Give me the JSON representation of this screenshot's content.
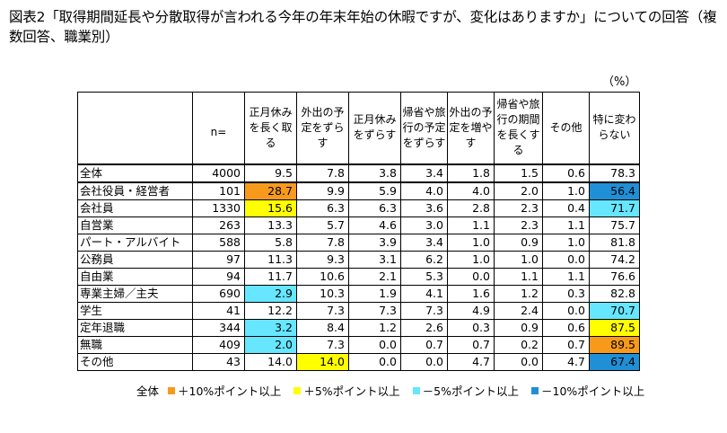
{
  "title": "図表2「取得期間延長や分散取得が言われる今年の年末年始の休暇ですが、変化はありますか」についての回答（複数回答、職業別）",
  "unit": "（%）",
  "columns": [
    "n=",
    "正月休みを長く取る",
    "外出の予定をずらす",
    "正月休みをずらす",
    "帰省や旅行の予定をずらす",
    "外出の予定を増やす",
    "帰省や旅行の期間を長くする",
    "その他",
    "特に変わらない"
  ],
  "rows": [
    {
      "label": "全体",
      "values": [
        "4000",
        "9.5",
        "7.8",
        "3.8",
        "3.4",
        "1.8",
        "1.5",
        "0.6",
        "78.3"
      ],
      "hl": [
        "",
        "",
        "",
        "",
        "",
        "",
        "",
        "",
        ""
      ]
    },
    {
      "label": "会社役員・経営者",
      "values": [
        "101",
        "28.7",
        "9.9",
        "5.9",
        "4.0",
        "4.0",
        "2.0",
        "1.0",
        "56.4"
      ],
      "hl": [
        "",
        "orange",
        "",
        "",
        "",
        "",
        "",
        "",
        "blue"
      ]
    },
    {
      "label": "会社員",
      "values": [
        "1330",
        "15.6",
        "6.3",
        "6.3",
        "3.6",
        "2.8",
        "2.3",
        "0.4",
        "71.7"
      ],
      "hl": [
        "",
        "yellow",
        "",
        "",
        "",
        "",
        "",
        "",
        "cyan"
      ]
    },
    {
      "label": "自営業",
      "values": [
        "263",
        "13.3",
        "5.7",
        "4.6",
        "3.0",
        "1.1",
        "2.3",
        "1.1",
        "75.7"
      ],
      "hl": [
        "",
        "",
        "",
        "",
        "",
        "",
        "",
        "",
        ""
      ]
    },
    {
      "label": "パート・アルバイト",
      "values": [
        "588",
        "5.8",
        "7.8",
        "3.9",
        "3.4",
        "1.0",
        "0.9",
        "1.0",
        "81.8"
      ],
      "hl": [
        "",
        "",
        "",
        "",
        "",
        "",
        "",
        "",
        ""
      ]
    },
    {
      "label": "公務員",
      "values": [
        "97",
        "11.3",
        "9.3",
        "3.1",
        "6.2",
        "1.0",
        "1.0",
        "0.0",
        "74.2"
      ],
      "hl": [
        "",
        "",
        "",
        "",
        "",
        "",
        "",
        "",
        ""
      ]
    },
    {
      "label": "自由業",
      "values": [
        "94",
        "11.7",
        "10.6",
        "2.1",
        "5.3",
        "0.0",
        "1.1",
        "1.1",
        "76.6"
      ],
      "hl": [
        "",
        "",
        "",
        "",
        "",
        "",
        "",
        "",
        ""
      ]
    },
    {
      "label": "専業主婦／主夫",
      "values": [
        "690",
        "2.9",
        "10.3",
        "1.9",
        "4.1",
        "1.6",
        "1.2",
        "0.3",
        "82.8"
      ],
      "hl": [
        "",
        "cyan",
        "",
        "",
        "",
        "",
        "",
        "",
        ""
      ]
    },
    {
      "label": "学生",
      "values": [
        "41",
        "12.2",
        "7.3",
        "7.3",
        "7.3",
        "4.9",
        "2.4",
        "0.0",
        "70.7"
      ],
      "hl": [
        "",
        "",
        "",
        "",
        "",
        "",
        "",
        "",
        "cyan"
      ]
    },
    {
      "label": "定年退職",
      "values": [
        "344",
        "3.2",
        "8.4",
        "1.2",
        "2.6",
        "0.3",
        "0.9",
        "0.6",
        "87.5"
      ],
      "hl": [
        "",
        "cyan",
        "",
        "",
        "",
        "",
        "",
        "",
        "yellow"
      ]
    },
    {
      "label": "無職",
      "values": [
        "409",
        "2.0",
        "7.3",
        "0.0",
        "0.7",
        "0.7",
        "0.2",
        "0.7",
        "89.5"
      ],
      "hl": [
        "",
        "cyan",
        "",
        "",
        "",
        "",
        "",
        "",
        "orange"
      ]
    },
    {
      "label": "その他",
      "values": [
        "43",
        "14.0",
        "14.0",
        "0.0",
        "0.0",
        "4.7",
        "0.0",
        "4.7",
        "67.4"
      ],
      "hl": [
        "",
        "",
        "yellow",
        "",
        "",
        "",
        "",
        "",
        "blue"
      ]
    }
  ],
  "legend": {
    "prefix": "全体",
    "items": [
      {
        "color": "#f79a1c",
        "label": "＋10%ポイント以上"
      },
      {
        "color": "#ffff00",
        "label": "＋5%ポイント以上"
      },
      {
        "color": "#66e6ff",
        "label": "－5%ポイント以上"
      },
      {
        "color": "#1f8fd6",
        "label": "－10%ポイント以上"
      }
    ]
  },
  "colors": {
    "orange": "#f79a1c",
    "yellow": "#ffff00",
    "cyan": "#66e6ff",
    "blue": "#1f8fd6"
  }
}
